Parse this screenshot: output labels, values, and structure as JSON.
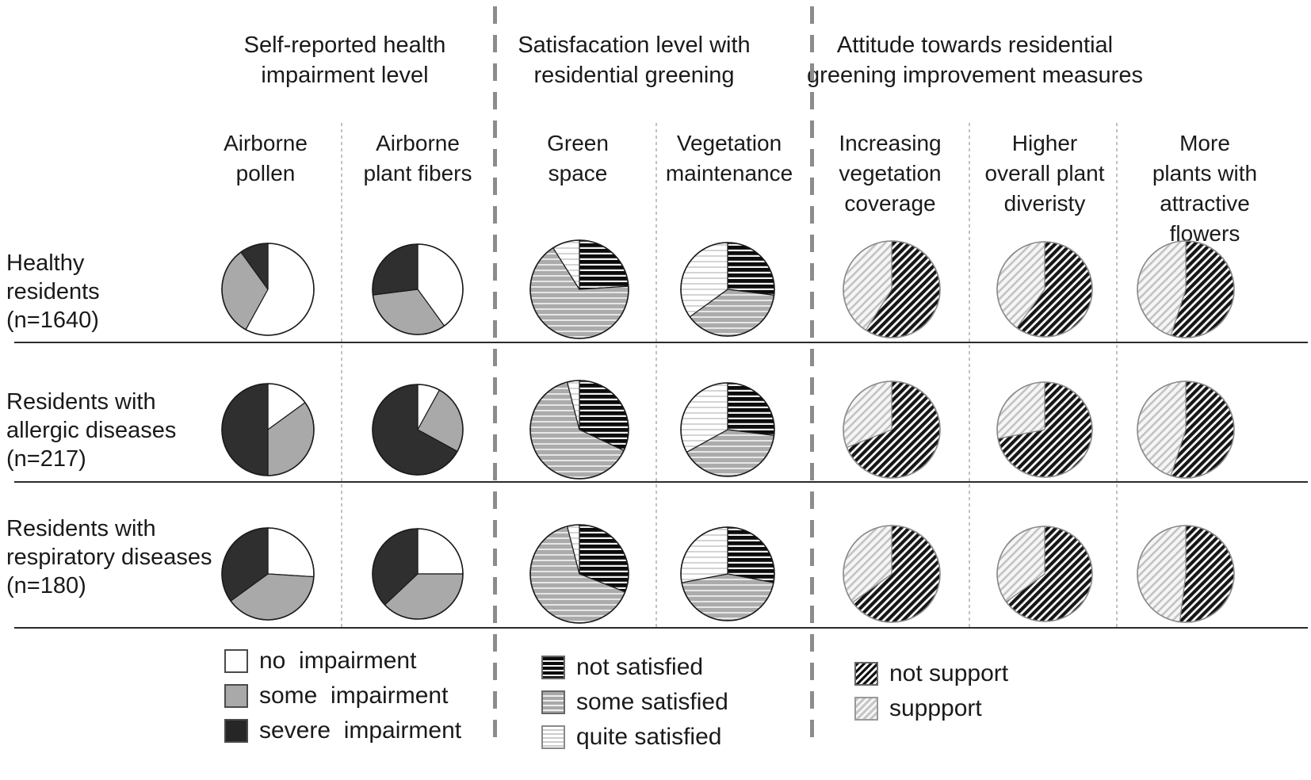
{
  "group_headers": [
    "Self-reported health\nimpairment level",
    "Satisfacation level with\nresidential greening",
    "Attitude towards residential\ngreening improvement measures"
  ],
  "column_headers": [
    "Airborne\npollen",
    "Airborne\nplant fibers",
    "Green\nspace",
    "Vegetation\nmaintenance",
    "Increasing\nvegetation\ncoverage",
    "Higher\noverall plant\ndiveristy",
    "More plants with\nattractive flowers"
  ],
  "row_labels": [
    "Healthy\nresidents\n(n=1640)",
    "Residents with\nallergic diseases\n(n=217)",
    "Residents with\nrespiratory diseases\n(n=180)"
  ],
  "legends": {
    "impairment": {
      "items": [
        {
          "label": "no  impairment",
          "swatch": "white-square"
        },
        {
          "label": "some  impairment",
          "swatch": "gray-square"
        },
        {
          "label": "severe  impairment",
          "swatch": "black-square"
        }
      ]
    },
    "satisfaction": {
      "items": [
        {
          "label": "not satisfied",
          "swatch": "black-horizontal-stripes"
        },
        {
          "label": "some satisfied",
          "swatch": "gray-horizontal-stripes"
        },
        {
          "label": "quite satisfied",
          "swatch": "light-horizontal-stripes"
        }
      ]
    },
    "attitude": {
      "items": [
        {
          "label": "not support",
          "swatch": "dark-diagonal-hatch"
        },
        {
          "label": "suppport",
          "swatch": "light-diagonal-hatch"
        }
      ]
    }
  },
  "colors": {
    "no_impairment": "#ffffff",
    "some_impairment": "#a9a9a9",
    "severe_impairment": "#2f2f2f",
    "hatch_dark": "#161616",
    "hatch_light": "#c3c3c3",
    "divider_line": "#2b2b2b",
    "dashed_separator": "#8c8c8c"
  },
  "chart_data": {
    "type": "pie",
    "note": "21 pie charts (3 resident groups x 7 questions); values are percentages estimated from slice angles, drawn clockwise from 12 o'clock",
    "rows": [
      {
        "label": "Healthy residents (n=1640)",
        "pies": [
          {
            "column": "Airborne pollen",
            "slices": [
              {
                "label": "no impairment",
                "value": 58
              },
              {
                "label": "some impairment",
                "value": 32
              },
              {
                "label": "severe impairment",
                "value": 10
              }
            ]
          },
          {
            "column": "Airborne plant fibers",
            "slices": [
              {
                "label": "no impairment",
                "value": 40
              },
              {
                "label": "some impairment",
                "value": 33
              },
              {
                "label": "severe impairment",
                "value": 27
              }
            ]
          },
          {
            "column": "Green space",
            "slices": [
              {
                "label": "not satisfied",
                "value": 24
              },
              {
                "label": "some satisfied",
                "value": 67
              },
              {
                "label": "quite satisfied",
                "value": 9
              }
            ]
          },
          {
            "column": "Vegetation maintenance",
            "slices": [
              {
                "label": "not satisfied",
                "value": 27
              },
              {
                "label": "some satisfied",
                "value": 38
              },
              {
                "label": "quite satisfied",
                "value": 35
              }
            ]
          },
          {
            "column": "Increasing vegetation coverage",
            "slices": [
              {
                "label": "not support",
                "value": 59
              },
              {
                "label": "suppport",
                "value": 41
              }
            ]
          },
          {
            "column": "Higher overall plant diveristy",
            "slices": [
              {
                "label": "not support",
                "value": 60
              },
              {
                "label": "suppport",
                "value": 40
              }
            ]
          },
          {
            "column": "More plants with attractive flowers",
            "slices": [
              {
                "label": "not support",
                "value": 55
              },
              {
                "label": "suppport",
                "value": 45
              }
            ]
          }
        ]
      },
      {
        "label": "Residents with allergic diseases (n=217)",
        "pies": [
          {
            "column": "Airborne pollen",
            "slices": [
              {
                "label": "no impairment",
                "value": 15
              },
              {
                "label": "some impairment",
                "value": 35
              },
              {
                "label": "severe impairment",
                "value": 50
              }
            ]
          },
          {
            "column": "Airborne plant fibers",
            "slices": [
              {
                "label": "no impairment",
                "value": 8
              },
              {
                "label": "some impairment",
                "value": 25
              },
              {
                "label": "severe impairment",
                "value": 67
              }
            ]
          },
          {
            "column": "Green space",
            "slices": [
              {
                "label": "not satisfied",
                "value": 32
              },
              {
                "label": "some satisfied",
                "value": 64
              },
              {
                "label": "quite satisfied",
                "value": 4
              }
            ]
          },
          {
            "column": "Vegetation maintenance",
            "slices": [
              {
                "label": "not satisfied",
                "value": 27
              },
              {
                "label": "some satisfied",
                "value": 40
              },
              {
                "label": "quite satisfied",
                "value": 33
              }
            ]
          },
          {
            "column": "Increasing vegetation coverage",
            "slices": [
              {
                "label": "not support",
                "value": 69
              },
              {
                "label": "suppport",
                "value": 31
              }
            ]
          },
          {
            "column": "Higher overall plant diveristy",
            "slices": [
              {
                "label": "not support",
                "value": 72
              },
              {
                "label": "suppport",
                "value": 28
              }
            ]
          },
          {
            "column": "More plants with attractive flowers",
            "slices": [
              {
                "label": "not support",
                "value": 55
              },
              {
                "label": "suppport",
                "value": 45
              }
            ]
          }
        ]
      },
      {
        "label": "Residents with respiratory diseases (n=180)",
        "pies": [
          {
            "column": "Airborne pollen",
            "slices": [
              {
                "label": "no impairment",
                "value": 26
              },
              {
                "label": "some impairment",
                "value": 39
              },
              {
                "label": "severe impairment",
                "value": 35
              }
            ]
          },
          {
            "column": "Airborne plant fibers",
            "slices": [
              {
                "label": "no impairment",
                "value": 25
              },
              {
                "label": "some impairment",
                "value": 38
              },
              {
                "label": "severe impairment",
                "value": 37
              }
            ]
          },
          {
            "column": "Green space",
            "slices": [
              {
                "label": "not satisfied",
                "value": 31
              },
              {
                "label": "some satisfied",
                "value": 65
              },
              {
                "label": "quite satisfied",
                "value": 4
              }
            ]
          },
          {
            "column": "Vegetation maintenance",
            "slices": [
              {
                "label": "not satisfied",
                "value": 28
              },
              {
                "label": "some satisfied",
                "value": 44
              },
              {
                "label": "quite satisfied",
                "value": 28
              }
            ]
          },
          {
            "column": "Increasing vegetation coverage",
            "slices": [
              {
                "label": "not support",
                "value": 65
              },
              {
                "label": "suppport",
                "value": 35
              }
            ]
          },
          {
            "column": "Higher overall plant diveristy",
            "slices": [
              {
                "label": "not support",
                "value": 65
              },
              {
                "label": "suppport",
                "value": 35
              }
            ]
          },
          {
            "column": "More plants with attractive flowers",
            "slices": [
              {
                "label": "not support",
                "value": 52
              },
              {
                "label": "suppport",
                "value": 48
              }
            ]
          }
        ]
      }
    ]
  }
}
